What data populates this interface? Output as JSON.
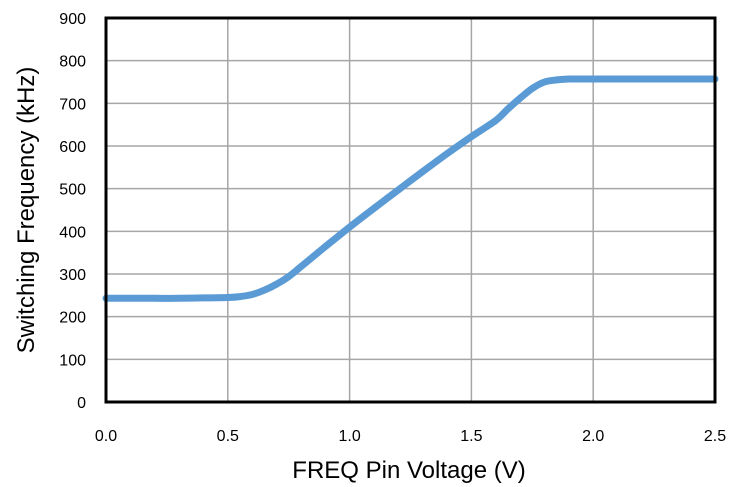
{
  "chart_data": {
    "type": "line",
    "title": "",
    "xlabel": "FREQ Pin Voltage (V)",
    "ylabel": "Switching Frequency (kHz)",
    "xlim": [
      0.0,
      2.5
    ],
    "ylim": [
      0,
      900
    ],
    "x_ticks": [
      "0.0",
      "0.5",
      "1.0",
      "1.5",
      "2.0",
      "2.5"
    ],
    "y_ticks": [
      "0",
      "100",
      "200",
      "300",
      "400",
      "500",
      "600",
      "700",
      "800",
      "900"
    ],
    "grid": true,
    "legend": "none",
    "series": [
      {
        "color": "#5b9bd5",
        "x": [
          0.0,
          0.1,
          0.2,
          0.3,
          0.4,
          0.5,
          0.55,
          0.6,
          0.65,
          0.7,
          0.75,
          0.8,
          0.9,
          1.0,
          1.1,
          1.2,
          1.3,
          1.4,
          1.5,
          1.6,
          1.65,
          1.7,
          1.75,
          1.8,
          1.85,
          1.9,
          2.0,
          2.1,
          2.2,
          2.3,
          2.4,
          2.5
        ],
        "y": [
          243,
          243,
          243,
          243,
          244,
          245,
          247,
          252,
          262,
          276,
          294,
          317,
          364,
          410,
          454,
          497,
          540,
          582,
          622,
          660,
          687,
          712,
          735,
          750,
          755,
          757,
          757,
          757,
          757,
          757,
          757,
          757
        ]
      }
    ]
  }
}
